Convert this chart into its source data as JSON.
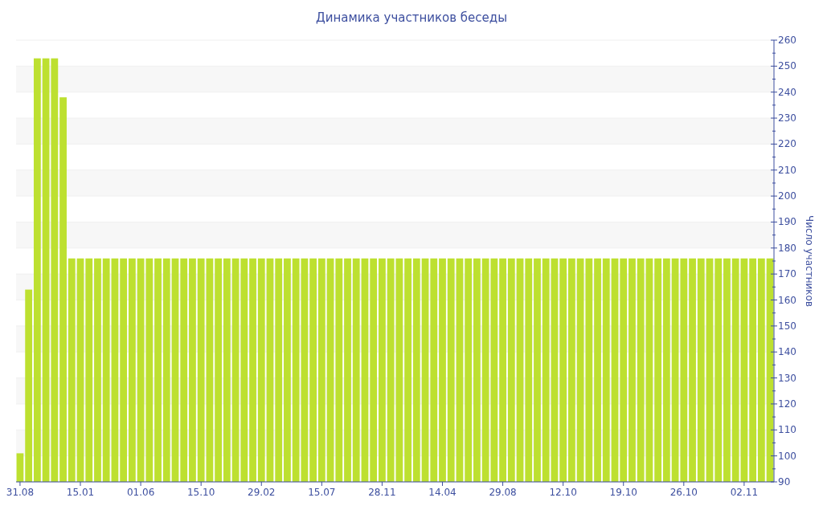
{
  "chart_data": {
    "type": "bar",
    "title": "Динамика участников беседы",
    "ylabel": "Число участников",
    "categories": [
      "31.08",
      null,
      null,
      null,
      null,
      null,
      null,
      "15.01",
      null,
      null,
      null,
      null,
      null,
      null,
      "01.06",
      null,
      null,
      null,
      null,
      null,
      null,
      "15.10",
      null,
      null,
      null,
      null,
      null,
      null,
      "29.02",
      null,
      null,
      null,
      null,
      null,
      null,
      "15.07",
      null,
      null,
      null,
      null,
      null,
      null,
      "28.11",
      null,
      null,
      null,
      null,
      null,
      null,
      "14.04",
      null,
      null,
      null,
      null,
      null,
      null,
      "29.08",
      null,
      null,
      null,
      null,
      null,
      null,
      "12.10",
      null,
      null,
      null,
      null,
      null,
      null,
      "19.10",
      null,
      null,
      null,
      null,
      null,
      null,
      "26.10",
      null,
      null,
      null,
      null,
      null,
      null,
      "02.11",
      null,
      null,
      null
    ],
    "values": [
      101,
      164,
      253,
      253,
      253,
      238,
      176,
      176,
      176,
      176,
      176,
      176,
      176,
      176,
      176,
      176,
      176,
      176,
      176,
      176,
      176,
      176,
      176,
      176,
      176,
      176,
      176,
      176,
      176,
      176,
      176,
      176,
      176,
      176,
      176,
      176,
      176,
      176,
      176,
      176,
      176,
      176,
      176,
      176,
      176,
      176,
      176,
      176,
      176,
      176,
      176,
      176,
      176,
      176,
      176,
      176,
      176,
      176,
      176,
      176,
      176,
      176,
      176,
      176,
      176,
      176,
      176,
      176,
      176,
      176,
      176,
      176,
      176,
      176,
      176,
      176,
      176,
      176,
      176,
      176,
      176,
      176,
      176,
      176,
      176,
      176,
      176,
      176
    ],
    "color": "#bde030",
    "ylim": [
      90,
      260
    ],
    "yticks": [
      90,
      {
        "value": 95,
        "label": null
      },
      100,
      {
        "value": 105,
        "label": null
      },
      110,
      {
        "value": 115,
        "label": null
      },
      120,
      {
        "value": 125,
        "label": null
      },
      130,
      {
        "value": 135,
        "label": null
      },
      140,
      {
        "value": 145,
        "label": null
      },
      150,
      {
        "value": 155,
        "label": null
      },
      160,
      {
        "value": 165,
        "label": null
      },
      170,
      {
        "value": 175,
        "label": null
      },
      180,
      {
        "value": 185,
        "label": null
      },
      190,
      {
        "value": 195,
        "label": null
      },
      200,
      {
        "value": 205,
        "label": null
      },
      210,
      {
        "value": 215,
        "label": null
      },
      220,
      {
        "value": 225,
        "label": null
      },
      230,
      {
        "value": 235,
        "label": null
      },
      240,
      {
        "value": 245,
        "label": null
      },
      250,
      {
        "value": 255,
        "label": null
      },
      260
    ],
    "grid": "y"
  }
}
